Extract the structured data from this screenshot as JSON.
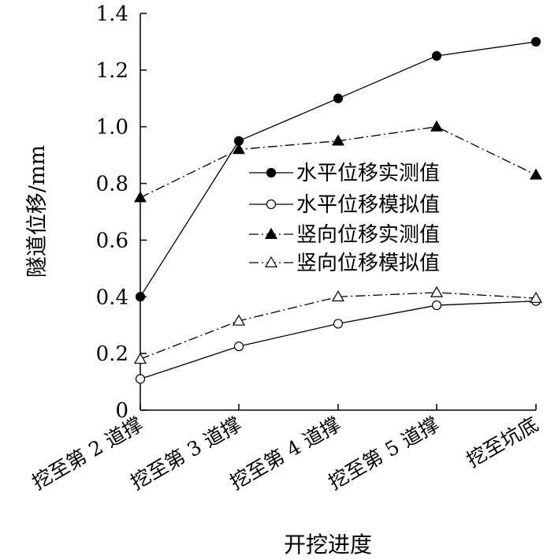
{
  "chart_data": {
    "type": "line",
    "title": "",
    "xlabel": "开挖进度",
    "ylabel": "隧道位移/mm",
    "categories": [
      "挖至第 2 道撑",
      "挖至第 3 道撑",
      "挖至第 4 道撑",
      "挖至第 5 道撑",
      "挖至坑底"
    ],
    "ylim": [
      0,
      1.4
    ],
    "yticks": [
      "0",
      "0.2",
      "0.4",
      "0.6",
      "0.8",
      "1.0",
      "1.2",
      "1.4"
    ],
    "grid": false,
    "legend_position": "center-right",
    "series": [
      {
        "name": "水平位移实测值",
        "values": [
          0.4,
          0.95,
          1.1,
          1.25,
          1.3
        ],
        "line": "solid",
        "marker": "circle",
        "filled": true
      },
      {
        "name": "水平位移模拟值",
        "values": [
          0.11,
          0.225,
          0.305,
          0.37,
          0.385
        ],
        "line": "solid",
        "marker": "circle",
        "filled": false
      },
      {
        "name": "竖向位移实测值",
        "values": [
          0.75,
          0.92,
          0.95,
          1.0,
          0.83
        ],
        "line": "dashdot",
        "marker": "triangle",
        "filled": true
      },
      {
        "name": "竖向位移模拟值",
        "values": [
          0.18,
          0.315,
          0.4,
          0.415,
          0.395
        ],
        "line": "dashdot",
        "marker": "triangle",
        "filled": false
      }
    ]
  }
}
